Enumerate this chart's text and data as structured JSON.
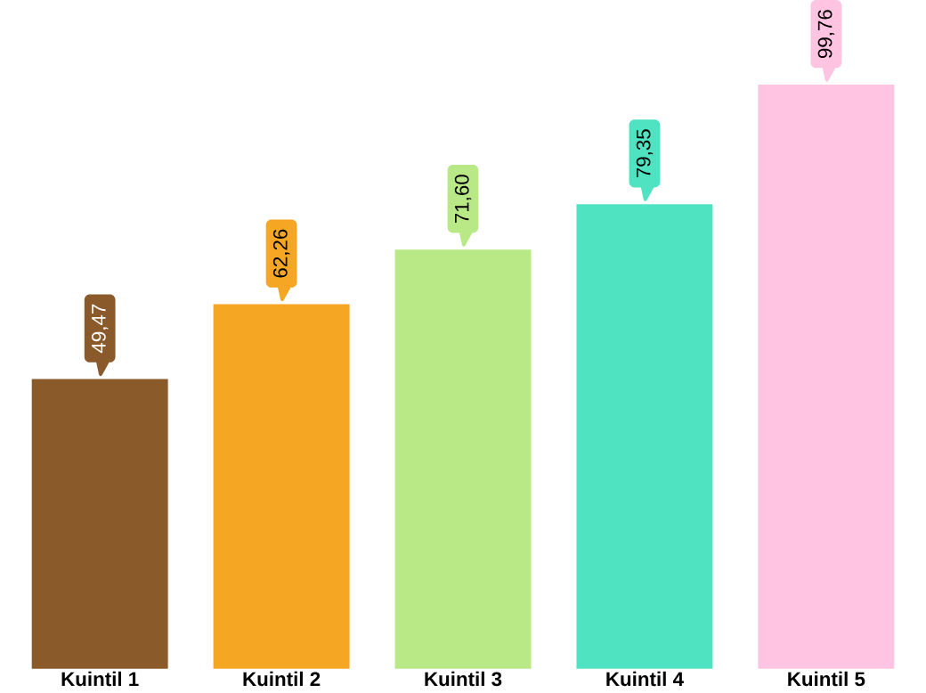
{
  "chart_data": {
    "type": "bar",
    "categories": [
      "Kuintil 1",
      "Kuintil 2",
      "Kuintil 3",
      "Kuintil 4",
      "Kuintil 5"
    ],
    "values": [
      49.47,
      62.26,
      71.6,
      79.35,
      99.76
    ],
    "colors": [
      "#8b5a2b",
      "#f5a623",
      "#b8e986",
      "#50e3c2",
      "#ffc4e1"
    ],
    "value_labels": [
      "49,47",
      "62,26",
      "71,60",
      "79,35",
      "99,76"
    ]
  }
}
